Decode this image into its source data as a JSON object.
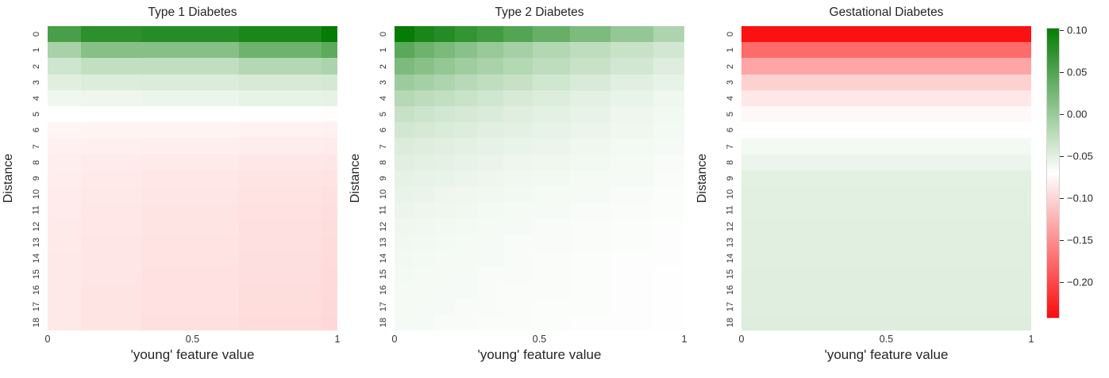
{
  "figure": {
    "background": "#ffffff",
    "plot_titles": [
      "Type 1 Diabetes",
      "Type 2 Diabetes",
      "Gestational Diabetes"
    ]
  },
  "colormap": {
    "vmin": -0.241,
    "vmax": 0.103,
    "negative_color": "#fb0d0d",
    "mid_color": "#ffffff",
    "positive_color": "#067c06"
  },
  "colorbar": {
    "tick_labels": [
      "0.10",
      "0.05",
      "0.00",
      "−0.05",
      "−0.10",
      "−0.15",
      "−0.20"
    ],
    "tick_values": [
      0.1,
      0.05,
      0.0,
      -0.05,
      -0.1,
      -0.15,
      -0.2
    ]
  },
  "chart_data": [
    {
      "type": "heatmap",
      "title": "Type 1 Diabetes",
      "xlabel": "'young' feature value",
      "ylabel": "Distance",
      "x_ticks": [
        "0",
        "0.5",
        "1"
      ],
      "x_range": [
        0,
        1
      ],
      "y_ticks": [
        "0",
        "1",
        "2",
        "3",
        "4",
        "5",
        "6",
        "7",
        "8",
        "9",
        "10",
        "11",
        "12",
        "13",
        "14",
        "15",
        "16",
        "17",
        "18"
      ],
      "col_widths": [
        0.114,
        0.21,
        0.335,
        0.285,
        0.056
      ],
      "values": [
        [
          0.057,
          0.077,
          0.081,
          0.089,
          0.103
        ],
        [
          -0.009,
          0.014,
          0.014,
          0.032,
          0.043
        ],
        [
          -0.035,
          -0.027,
          -0.026,
          -0.017,
          -0.012
        ],
        [
          -0.048,
          -0.045,
          -0.044,
          -0.041,
          -0.039
        ],
        [
          -0.058,
          -0.057,
          -0.056,
          -0.053,
          -0.052
        ],
        [
          -0.069,
          -0.069,
          -0.069,
          -0.07,
          -0.071
        ],
        [
          -0.076,
          -0.077,
          -0.077,
          -0.078,
          -0.079
        ],
        [
          -0.079,
          -0.08,
          -0.081,
          -0.082,
          -0.083
        ],
        [
          -0.081,
          -0.083,
          -0.084,
          -0.086,
          -0.087
        ],
        [
          -0.082,
          -0.084,
          -0.086,
          -0.088,
          -0.089
        ],
        [
          -0.083,
          -0.085,
          -0.087,
          -0.089,
          -0.091
        ],
        [
          -0.083,
          -0.086,
          -0.088,
          -0.09,
          -0.092
        ],
        [
          -0.084,
          -0.086,
          -0.088,
          -0.091,
          -0.093
        ],
        [
          -0.084,
          -0.087,
          -0.089,
          -0.091,
          -0.094
        ],
        [
          -0.085,
          -0.087,
          -0.089,
          -0.092,
          -0.094
        ],
        [
          -0.085,
          -0.087,
          -0.09,
          -0.092,
          -0.095
        ],
        [
          -0.085,
          -0.088,
          -0.09,
          -0.093,
          -0.095
        ],
        [
          -0.085,
          -0.088,
          -0.09,
          -0.093,
          -0.096
        ],
        [
          -0.085,
          -0.088,
          -0.091,
          -0.094,
          -0.097
        ]
      ]
    },
    {
      "type": "heatmap",
      "title": "Type 2 Diabetes",
      "xlabel": "'young' feature value",
      "ylabel": "Distance",
      "x_ticks": [
        "0",
        "0.5",
        "1"
      ],
      "x_range": [
        0,
        1
      ],
      "y_ticks": [
        "0",
        "1",
        "2",
        "3",
        "4",
        "5",
        "6",
        "7",
        "8",
        "9",
        "10",
        "11",
        "12",
        "13",
        "14",
        "15",
        "16",
        "17",
        "18"
      ],
      "col_widths": [
        0.068,
        0.068,
        0.071,
        0.077,
        0.09,
        0.104,
        0.127,
        0.14,
        0.149,
        0.106
      ],
      "values": [
        [
          0.103,
          0.09,
          0.082,
          0.072,
          0.062,
          0.05,
          0.036,
          0.021,
          0.005,
          -0.013
        ],
        [
          0.045,
          0.032,
          0.022,
          0.012,
          0.002,
          -0.007,
          -0.016,
          -0.024,
          -0.031,
          -0.037
        ],
        [
          0.021,
          0.013,
          0.005,
          -0.003,
          -0.01,
          -0.017,
          -0.024,
          -0.031,
          -0.038,
          -0.046
        ],
        [
          -0.001,
          -0.007,
          -0.013,
          -0.019,
          -0.025,
          -0.03,
          -0.036,
          -0.042,
          -0.048,
          -0.053
        ],
        [
          -0.018,
          -0.023,
          -0.027,
          -0.032,
          -0.036,
          -0.041,
          -0.045,
          -0.05,
          -0.054,
          -0.058
        ],
        [
          -0.03,
          -0.034,
          -0.037,
          -0.04,
          -0.043,
          -0.047,
          -0.05,
          -0.053,
          -0.057,
          -0.06
        ],
        [
          -0.038,
          -0.04,
          -0.043,
          -0.045,
          -0.048,
          -0.05,
          -0.053,
          -0.056,
          -0.058,
          -0.061
        ],
        [
          -0.044,
          -0.046,
          -0.048,
          -0.05,
          -0.052,
          -0.054,
          -0.056,
          -0.058,
          -0.061,
          -0.063
        ],
        [
          -0.048,
          -0.05,
          -0.051,
          -0.053,
          -0.055,
          -0.057,
          -0.058,
          -0.06,
          -0.062,
          -0.064
        ],
        [
          -0.052,
          -0.053,
          -0.054,
          -0.056,
          -0.057,
          -0.059,
          -0.06,
          -0.062,
          -0.063,
          -0.065
        ],
        [
          -0.054,
          -0.055,
          -0.057,
          -0.058,
          -0.059,
          -0.06,
          -0.062,
          -0.063,
          -0.064,
          -0.066
        ],
        [
          -0.056,
          -0.057,
          -0.058,
          -0.059,
          -0.061,
          -0.062,
          -0.063,
          -0.064,
          -0.065,
          -0.066
        ],
        [
          -0.058,
          -0.059,
          -0.06,
          -0.061,
          -0.062,
          -0.063,
          -0.064,
          -0.065,
          -0.066,
          -0.067
        ],
        [
          -0.059,
          -0.06,
          -0.061,
          -0.062,
          -0.063,
          -0.064,
          -0.064,
          -0.065,
          -0.066,
          -0.067
        ],
        [
          -0.06,
          -0.061,
          -0.062,
          -0.062,
          -0.063,
          -0.064,
          -0.065,
          -0.066,
          -0.067,
          -0.067
        ],
        [
          -0.061,
          -0.062,
          -0.062,
          -0.063,
          -0.064,
          -0.064,
          -0.065,
          -0.066,
          -0.067,
          -0.068
        ],
        [
          -0.062,
          -0.062,
          -0.063,
          -0.063,
          -0.064,
          -0.065,
          -0.065,
          -0.066,
          -0.067,
          -0.068
        ],
        [
          -0.062,
          -0.063,
          -0.063,
          -0.064,
          -0.064,
          -0.065,
          -0.066,
          -0.066,
          -0.067,
          -0.068
        ],
        [
          -0.062,
          -0.063,
          -0.064,
          -0.064,
          -0.065,
          -0.065,
          -0.066,
          -0.067,
          -0.067,
          -0.068
        ]
      ]
    },
    {
      "type": "heatmap",
      "title": "Gestational Diabetes",
      "xlabel": "'young' feature value",
      "ylabel": "Distance",
      "x_ticks": [
        "0",
        "0.5",
        "1"
      ],
      "x_range": [
        0,
        1
      ],
      "y_ticks": [
        "0",
        "1",
        "2",
        "3",
        "4",
        "5",
        "6",
        "7",
        "8",
        "9",
        "10",
        "11",
        "12",
        "13",
        "14",
        "15",
        "16",
        "17",
        "18"
      ],
      "col_widths": [
        1.0
      ],
      "values": [
        [
          -0.238
        ],
        [
          -0.174
        ],
        [
          -0.133
        ],
        [
          -0.102
        ],
        [
          -0.086
        ],
        [
          -0.074
        ],
        [
          -0.069
        ],
        [
          -0.061
        ],
        [
          -0.056
        ],
        [
          -0.05
        ],
        [
          -0.049
        ],
        [
          -0.049
        ],
        [
          -0.048
        ],
        [
          -0.048
        ],
        [
          -0.048
        ],
        [
          -0.047
        ],
        [
          -0.047
        ],
        [
          -0.047
        ],
        [
          -0.046
        ]
      ]
    }
  ]
}
